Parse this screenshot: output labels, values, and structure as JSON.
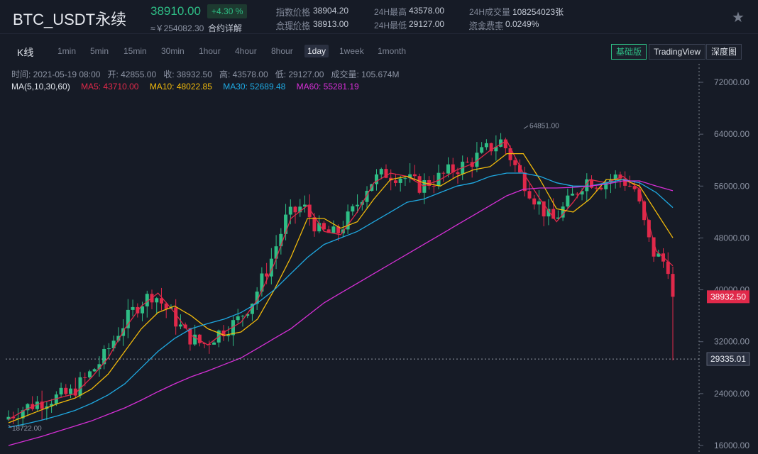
{
  "header": {
    "symbol": "BTC_USDT永续",
    "last_price": "38910.00",
    "change_pct": "+4.30 %",
    "cny_price": "≈￥254082.30",
    "contract_detail": "合约详解",
    "stats": [
      {
        "label": "指数价格",
        "value": "38904.20"
      },
      {
        "label": "合理价格",
        "value": "38913.00"
      },
      {
        "label": "24H最高",
        "value": "43578.00"
      },
      {
        "label": "24H最低",
        "value": "29127.00"
      },
      {
        "label": "24H成交量",
        "value": "108254023张"
      },
      {
        "label": "资金费率",
        "value": "0.0249%"
      }
    ],
    "star_icon": "star-icon"
  },
  "toolbar": {
    "kline_label": "K线",
    "intervals": [
      "1min",
      "5min",
      "15min",
      "30min",
      "1hour",
      "4hour",
      "8hour",
      "1day",
      "1week",
      "1month"
    ],
    "active_interval": "1day",
    "views": [
      "基础版",
      "TradingView",
      "深度图"
    ],
    "active_view": "基础版"
  },
  "info": {
    "time": "时间: 2021-05-19 08:00",
    "open": "开: 42855.00",
    "close": "收: 38932.50",
    "high": "高: 43578.00",
    "low": "低: 29127.00",
    "volume": "成交量: 105.674M",
    "ma_title": "MA(5,10,30,60)",
    "ma5": "MA5: 43710.00",
    "ma10": "MA10: 48022.85",
    "ma30": "MA30: 52689.48",
    "ma60": "MA60: 55281.19"
  },
  "chart_data": {
    "type": "candlestick",
    "y_axis_ticks": [
      "72000.00",
      "64000.00",
      "56000.00",
      "48000.00",
      "40000.00",
      "32000.00",
      "24000.00",
      "16000.00"
    ],
    "ylim": [
      16000,
      72000
    ],
    "current_price_label": "38932.50",
    "crosshair_price_label": "29335.01",
    "max_marker": "64851.00",
    "min_marker": "18722.00",
    "colors": {
      "up": "#2ebd85",
      "down": "#e0294a",
      "ma5": "#e0294a",
      "ma10": "#f0b90b",
      "ma30": "#1fa8e0",
      "ma60": "#d62fd6"
    },
    "series": [
      {
        "name": "MA5",
        "values": [
          20000,
          21500,
          22600,
          23300,
          24000,
          26500,
          29500,
          34000,
          37500,
          39500,
          36500,
          33000,
          31500,
          33500,
          35000,
          38500,
          44000,
          51000,
          53000,
          49000,
          48500,
          52000,
          56500,
          58000,
          57500,
          56000,
          57000,
          58500,
          59500,
          61500,
          63000,
          58000,
          54000,
          50500,
          53500,
          57000,
          56500,
          57500,
          55500,
          46000,
          43710
        ]
      },
      {
        "name": "MA10",
        "values": [
          19500,
          20500,
          21500,
          22500,
          23300,
          24700,
          27000,
          30500,
          34000,
          36500,
          37500,
          36000,
          34000,
          33000,
          33500,
          35500,
          40000,
          45000,
          51000,
          51000,
          49500,
          50500,
          54000,
          57000,
          57500,
          56500,
          56000,
          57500,
          58500,
          59000,
          61000,
          61000,
          57000,
          52500,
          52000,
          54000,
          57000,
          57000,
          56000,
          52000,
          48022.85
        ]
      },
      {
        "name": "MA30",
        "values": [
          18800,
          19300,
          19900,
          20600,
          21400,
          22500,
          23800,
          25500,
          28000,
          30500,
          32500,
          34000,
          34800,
          35500,
          36500,
          38000,
          40000,
          42500,
          45000,
          47000,
          48000,
          49000,
          50500,
          52000,
          53500,
          54000,
          55000,
          56000,
          56500,
          57500,
          58000,
          58000,
          57500,
          56500,
          56000,
          56000,
          56500,
          57000,
          56500,
          55000,
          52689.48
        ]
      },
      {
        "name": "MA60",
        "values": [
          16000,
          16700,
          17400,
          18200,
          19000,
          19800,
          20800,
          21800,
          23000,
          24300,
          25500,
          26600,
          27500,
          28500,
          29500,
          31000,
          32500,
          34000,
          36000,
          38000,
          39500,
          41000,
          42500,
          44000,
          45500,
          47000,
          48500,
          50000,
          51500,
          53000,
          54500,
          55500,
          55700,
          55700,
          55800,
          56000,
          56300,
          56800,
          56800,
          56000,
          55281.19
        ]
      }
    ]
  }
}
